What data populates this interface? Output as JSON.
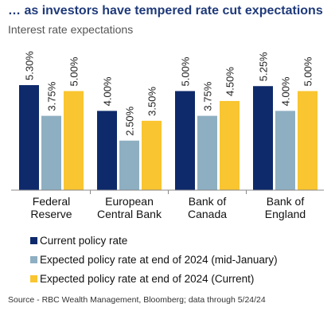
{
  "header": {
    "title": "… as investors have tempered rate cut expectations",
    "subtitle": "Interest rate expectations"
  },
  "source": "Source - RBC Wealth Management, Bloomberg; data through 5/24/24",
  "colors": {
    "current": "#0e2a6b",
    "mid_january": "#8eafc2",
    "current_expected": "#f9c530"
  },
  "chart_data": {
    "type": "bar",
    "title": "Interest rate expectations",
    "categories": [
      [
        "Federal",
        "Reserve"
      ],
      [
        "European",
        "Central Bank"
      ],
      [
        "Bank of",
        "Canada"
      ],
      [
        "Bank of",
        "England"
      ]
    ],
    "series": [
      {
        "name": "Current policy rate",
        "values": [
          5.3,
          4.0,
          5.0,
          5.25
        ],
        "labels": [
          "5.30%",
          "4.00%",
          "5.00%",
          "5.25%"
        ],
        "color": "#0e2a6b"
      },
      {
        "name": "Expected policy rate at end of 2024 (mid-January)",
        "values": [
          3.75,
          2.5,
          3.75,
          4.0
        ],
        "labels": [
          "3.75%",
          "2.50%",
          "3.75%",
          "4.00%"
        ],
        "color": "#8eafc2"
      },
      {
        "name": "Expected policy rate at end of 2024 (Current)",
        "values": [
          5.0,
          3.5,
          4.5,
          5.0
        ],
        "labels": [
          "5.00%",
          "3.50%",
          "4.50%",
          "5.00%"
        ],
        "color": "#f9c530"
      }
    ],
    "ylim": [
      0,
      5.3
    ],
    "grid": false,
    "legend_position": "bottom-left"
  }
}
